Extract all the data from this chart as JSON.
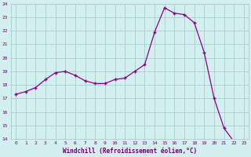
{
  "x": [
    0,
    1,
    2,
    3,
    4,
    5,
    6,
    7,
    8,
    9,
    10,
    11,
    12,
    13,
    14,
    15,
    16,
    17,
    18,
    19,
    20,
    21,
    22,
    23
  ],
  "y": [
    17.3,
    17.5,
    17.8,
    18.4,
    18.9,
    19.0,
    18.7,
    18.3,
    18.1,
    18.1,
    18.4,
    18.5,
    19.0,
    19.5,
    21.9,
    23.7,
    23.3,
    23.2,
    22.6,
    20.4,
    17.0,
    14.8,
    13.8,
    13.8
  ],
  "xlabel": "Windchill (Refroidissement éolien,°C)",
  "y_min": 14,
  "y_max": 24,
  "x_min": 0,
  "x_max": 23,
  "line_color": "#8b008b",
  "marker_color": "#8b008b",
  "bg_color": "#d4efef",
  "grid_color": "#a8cece",
  "tick_label_color": "#6a006a",
  "xlabel_color": "#6a006a"
}
